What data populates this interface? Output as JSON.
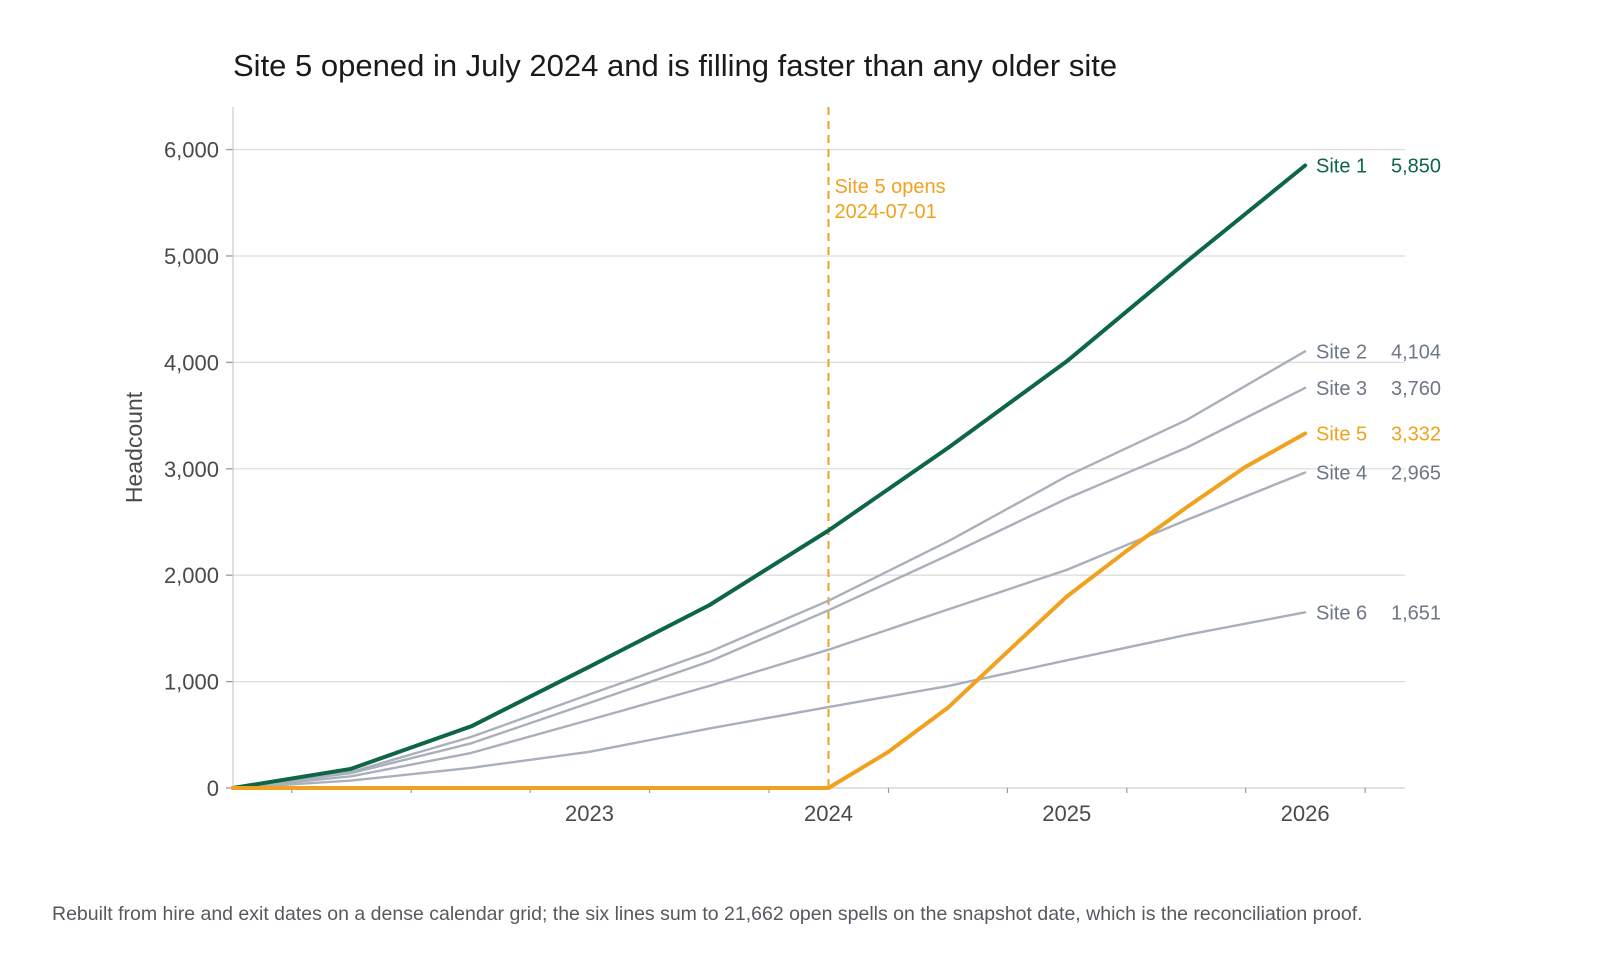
{
  "title": "Site 5 opened in July 2024 and is filling faster than any older site",
  "caption": "Rebuilt from hire and exit dates on a dense calendar grid; the six lines sum to 21,662 open spells on the snapshot date, which is the reconciliation proof.",
  "colors": {
    "highlight_dark": "#0d6646",
    "highlight_orange": "#f0a21f",
    "muted": "#a9b0bc",
    "muted_label": "#6e7787",
    "grid": "#dedede",
    "text": "#1a1a1a"
  },
  "chart_data": {
    "type": "line",
    "title": "Site 5 opened in July 2024 and is filling faster than any older site",
    "xlabel": "",
    "ylabel": "Headcount",
    "x_type": "date",
    "xlim": [
      "2022-01-01",
      "2026-12-01"
    ],
    "ylim": [
      0,
      6400
    ],
    "x_ticks": [
      "2023",
      "2024",
      "2025",
      "2026"
    ],
    "y_ticks": [
      "0",
      "1,000",
      "2,000",
      "3,000",
      "4,000",
      "5,000",
      "6,000"
    ],
    "grid": "horizontal",
    "legend": "direct labels at right end of lines",
    "annotation": {
      "date": "2024-07-01",
      "line1": "Site 5 opens",
      "line2": "2024-07-01"
    },
    "series": [
      {
        "name": "Site 1",
        "end_label": "5,850",
        "style": "highlight_dark",
        "points": [
          [
            "2022-01-01",
            0
          ],
          [
            "2022-07-01",
            180
          ],
          [
            "2023-01-01",
            580
          ],
          [
            "2023-07-01",
            1140
          ],
          [
            "2024-01-01",
            1720
          ],
          [
            "2024-07-01",
            2420
          ],
          [
            "2025-01-01",
            3200
          ],
          [
            "2025-07-01",
            4010
          ],
          [
            "2026-01-01",
            4950
          ],
          [
            "2026-07-01",
            5850
          ]
        ]
      },
      {
        "name": "Site 2",
        "end_label": "4,104",
        "style": "muted",
        "points": [
          [
            "2022-01-01",
            0
          ],
          [
            "2022-07-01",
            150
          ],
          [
            "2023-01-01",
            480
          ],
          [
            "2023-07-01",
            880
          ],
          [
            "2024-01-01",
            1280
          ],
          [
            "2024-07-01",
            1760
          ],
          [
            "2025-01-01",
            2320
          ],
          [
            "2025-07-01",
            2930
          ],
          [
            "2026-01-01",
            3460
          ],
          [
            "2026-07-01",
            4104
          ]
        ]
      },
      {
        "name": "Site 3",
        "end_label": "3,760",
        "style": "muted",
        "points": [
          [
            "2022-01-01",
            0
          ],
          [
            "2022-07-01",
            140
          ],
          [
            "2023-01-01",
            420
          ],
          [
            "2023-07-01",
            800
          ],
          [
            "2024-01-01",
            1190
          ],
          [
            "2024-07-01",
            1670
          ],
          [
            "2025-01-01",
            2190
          ],
          [
            "2025-07-01",
            2720
          ],
          [
            "2026-01-01",
            3200
          ],
          [
            "2026-07-01",
            3760
          ]
        ]
      },
      {
        "name": "Site 5",
        "end_label": "3,332",
        "style": "highlight_orange",
        "points": [
          [
            "2022-01-01",
            0
          ],
          [
            "2024-07-01",
            0
          ],
          [
            "2024-10-01",
            340
          ],
          [
            "2025-01-01",
            760
          ],
          [
            "2025-04-01",
            1280
          ],
          [
            "2025-07-01",
            1800
          ],
          [
            "2025-10-01",
            2230
          ],
          [
            "2026-01-01",
            2640
          ],
          [
            "2026-04-01",
            3020
          ],
          [
            "2026-07-01",
            3332
          ]
        ]
      },
      {
        "name": "Site 4",
        "end_label": "2,965",
        "style": "muted",
        "points": [
          [
            "2022-01-01",
            0
          ],
          [
            "2022-07-01",
            110
          ],
          [
            "2023-01-01",
            330
          ],
          [
            "2023-07-01",
            640
          ],
          [
            "2024-01-01",
            960
          ],
          [
            "2024-07-01",
            1300
          ],
          [
            "2025-01-01",
            1680
          ],
          [
            "2025-07-01",
            2050
          ],
          [
            "2026-01-01",
            2520
          ],
          [
            "2026-07-01",
            2965
          ]
        ]
      },
      {
        "name": "Site 6",
        "end_label": "1,651",
        "style": "muted",
        "points": [
          [
            "2022-01-01",
            0
          ],
          [
            "2022-07-01",
            70
          ],
          [
            "2023-01-01",
            190
          ],
          [
            "2023-07-01",
            340
          ],
          [
            "2024-01-01",
            560
          ],
          [
            "2024-07-01",
            760
          ],
          [
            "2025-01-01",
            960
          ],
          [
            "2025-07-01",
            1200
          ],
          [
            "2026-01-01",
            1440
          ],
          [
            "2026-07-01",
            1651
          ]
        ]
      }
    ]
  }
}
